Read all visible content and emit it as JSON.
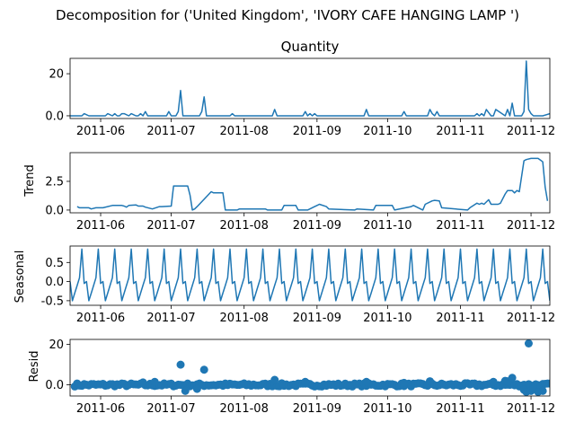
{
  "figure": {
    "suptitle": "Decomposition for ('United Kingdom', 'IVORY CAFE HANGING LAMP ')"
  },
  "colors": {
    "series": "#1f77b4",
    "axes": "#000000",
    "background": "#ffffff"
  },
  "chart_data": [
    {
      "type": "line",
      "title": "Quantity",
      "ylabel": "",
      "x_range": [
        "2011-05-19",
        "2011-12-09"
      ],
      "x_ticks": [
        "2011-06",
        "2011-07",
        "2011-08",
        "2011-09",
        "2011-10",
        "2011-11",
        "2011-12"
      ],
      "ylim": [
        -1.3,
        27.3
      ],
      "y_ticks": [
        0,
        20
      ],
      "grid": false,
      "series": [
        {
          "x": [
            "2011-05-19",
            "2011-05-21",
            "2011-05-24",
            "2011-05-25",
            "2011-05-27",
            "2011-06-03",
            "2011-06-04",
            "2011-06-06",
            "2011-06-07",
            "2011-06-08",
            "2011-06-09",
            "2011-06-10",
            "2011-06-11",
            "2011-06-13",
            "2011-06-14",
            "2011-06-16",
            "2011-06-17",
            "2011-06-18",
            "2011-06-19",
            "2011-06-20",
            "2011-06-21",
            "2011-06-29",
            "2011-06-30",
            "2011-07-01",
            "2011-07-02",
            "2011-07-03",
            "2011-07-04",
            "2011-07-05",
            "2011-07-06",
            "2011-07-13",
            "2011-07-14",
            "2011-07-15",
            "2011-07-16",
            "2011-07-19",
            "2011-07-26",
            "2011-07-27",
            "2011-07-28",
            "2011-08-13",
            "2011-08-14",
            "2011-08-15",
            "2011-08-26",
            "2011-08-27",
            "2011-08-28",
            "2011-08-29",
            "2011-08-30",
            "2011-08-31",
            "2011-09-01",
            "2011-09-02",
            "2011-09-21",
            "2011-09-22",
            "2011-09-23",
            "2011-10-07",
            "2011-10-08",
            "2011-10-09",
            "2011-10-18",
            "2011-10-19",
            "2011-10-20",
            "2011-10-21",
            "2011-10-22",
            "2011-10-23",
            "2011-11-07",
            "2011-11-08",
            "2011-11-09",
            "2011-11-10",
            "2011-11-11",
            "2011-11-12",
            "2011-11-14",
            "2011-11-15",
            "2011-11-16",
            "2011-11-20",
            "2011-11-21",
            "2011-11-22",
            "2011-11-23",
            "2011-11-24",
            "2011-11-26",
            "2011-11-27",
            "2011-11-28",
            "2011-11-29",
            "2011-11-30",
            "2011-12-01",
            "2011-12-02",
            "2011-12-03",
            "2011-12-06",
            "2011-12-09"
          ],
          "y": [
            0,
            0,
            0,
            1,
            0,
            0,
            1,
            0,
            1,
            0,
            0,
            1,
            1,
            0,
            1,
            0,
            0,
            1,
            0,
            2,
            0,
            0,
            2,
            0,
            0,
            0,
            2,
            12,
            0,
            0,
            2,
            9,
            0,
            0,
            0,
            1,
            0,
            0,
            3,
            0,
            0,
            2,
            0,
            1,
            0,
            1,
            0,
            0,
            0,
            3,
            0,
            0,
            2,
            0,
            0,
            3,
            1,
            0,
            2,
            0,
            0,
            1,
            0,
            1,
            0,
            3,
            0,
            0,
            3,
            0,
            3,
            0,
            6,
            0,
            0,
            0,
            2,
            26,
            3,
            1,
            0,
            0,
            0,
            1
          ]
        }
      ]
    },
    {
      "type": "line",
      "title": "",
      "ylabel": "Trend",
      "x_range": [
        "2011-05-19",
        "2011-12-09"
      ],
      "x_ticks": [
        "2011-06",
        "2011-07",
        "2011-08",
        "2011-09",
        "2011-10",
        "2011-11",
        "2011-12"
      ],
      "ylim": [
        -0.24,
        5.0
      ],
      "y_ticks": [
        0.0,
        2.5
      ],
      "grid": false,
      "series": [
        {
          "x": [
            "2011-05-22",
            "2011-05-23",
            "2011-05-27",
            "2011-05-28",
            "2011-05-30",
            "2011-06-02",
            "2011-06-06",
            "2011-06-10",
            "2011-06-11",
            "2011-06-12",
            "2011-06-13",
            "2011-06-16",
            "2011-06-17",
            "2011-06-19",
            "2011-06-20",
            "2011-06-23",
            "2011-06-26",
            "2011-06-27",
            "2011-07-01",
            "2011-07-02",
            "2011-07-08",
            "2011-07-09",
            "2011-07-10",
            "2011-07-11",
            "2011-07-12",
            "2011-07-18",
            "2011-07-19",
            "2011-07-23",
            "2011-07-24",
            "2011-07-29",
            "2011-07-30",
            "2011-08-10",
            "2011-08-11",
            "2011-08-17",
            "2011-08-18",
            "2011-08-23",
            "2011-08-24",
            "2011-08-28",
            "2011-08-31",
            "2011-09-01",
            "2011-09-02",
            "2011-09-05",
            "2011-09-06",
            "2011-09-17",
            "2011-09-18",
            "2011-09-25",
            "2011-09-26",
            "2011-10-03",
            "2011-10-04",
            "2011-10-11",
            "2011-10-12",
            "2011-10-13",
            "2011-10-16",
            "2011-10-17",
            "2011-10-20",
            "2011-10-21",
            "2011-10-23",
            "2011-10-24",
            "2011-11-04",
            "2011-11-05",
            "2011-11-08",
            "2011-11-09",
            "2011-11-10",
            "2011-11-11",
            "2011-11-13",
            "2011-11-14",
            "2011-11-15",
            "2011-11-17",
            "2011-11-18",
            "2011-11-20",
            "2011-11-21",
            "2011-11-23",
            "2011-11-24",
            "2011-11-25",
            "2011-11-26",
            "2011-11-28",
            "2011-11-29",
            "2011-12-01",
            "2011-12-04",
            "2011-12-06",
            "2011-12-07",
            "2011-12-08"
          ],
          "y": [
            0.3,
            0.2,
            0.2,
            0.1,
            0.2,
            0.2,
            0.4,
            0.4,
            0.35,
            0.25,
            0.4,
            0.45,
            0.35,
            0.35,
            0.25,
            0.1,
            0.3,
            0.3,
            0.35,
            2.1,
            2.1,
            1.3,
            0.0,
            0.1,
            0.3,
            1.6,
            1.5,
            1.5,
            0.0,
            0.0,
            0.1,
            0.1,
            0.0,
            0.0,
            0.4,
            0.4,
            0.0,
            0.0,
            0.3,
            0.4,
            0.5,
            0.3,
            0.1,
            0.0,
            0.1,
            0.0,
            0.4,
            0.4,
            0.0,
            0.3,
            0.4,
            0.3,
            0.0,
            0.5,
            0.8,
            0.85,
            0.8,
            0.2,
            0.0,
            0.2,
            0.6,
            0.5,
            0.6,
            0.5,
            0.9,
            0.5,
            0.5,
            0.5,
            0.6,
            1.4,
            1.7,
            1.7,
            1.5,
            1.7,
            1.6,
            4.3,
            4.4,
            4.5,
            4.5,
            4.2,
            2.0,
            0.8
          ]
        }
      ]
    },
    {
      "type": "line",
      "title": "",
      "ylabel": "Seasonal",
      "x_range": [
        "2011-05-19",
        "2011-12-09"
      ],
      "x_ticks": [
        "2011-06",
        "2011-07",
        "2011-08",
        "2011-09",
        "2011-10",
        "2011-11",
        "2011-12"
      ],
      "ylim": [
        -0.62,
        0.93
      ],
      "y_ticks": [
        0.5,
        0.0,
        -0.5
      ],
      "grid": false,
      "period": 7,
      "pattern": [
        0.0,
        -0.5,
        -0.3,
        -0.1,
        0.1,
        0.85,
        -0.05
      ],
      "series_start": "2011-05-19",
      "series_end": "2011-12-09"
    },
    {
      "type": "scatter",
      "title": "",
      "ylabel": "Resid",
      "x_range": [
        "2011-05-19",
        "2011-12-09"
      ],
      "x_ticks": [
        "2011-06",
        "2011-07",
        "2011-08",
        "2011-09",
        "2011-10",
        "2011-11",
        "2011-12"
      ],
      "ylim": [
        -5.5,
        22.5
      ],
      "y_ticks": [
        0,
        20
      ],
      "grid": false,
      "zero_line": true,
      "series": [
        {
          "x": [
            "2011-07-05",
            "2011-07-15",
            "2011-07-07",
            "2011-08-14",
            "2011-08-27",
            "2011-09-22",
            "2011-10-08",
            "2011-10-19",
            "2011-11-15",
            "2011-11-20",
            "2011-11-21",
            "2011-11-23",
            "2011-11-28",
            "2011-11-29",
            "2011-11-30",
            "2011-12-01",
            "2011-12-02",
            "2011-12-04",
            "2011-12-06",
            "2011-06-19",
            "2011-06-24",
            "2011-07-12"
          ],
          "y": [
            10,
            7.5,
            -3,
            2.5,
            1.5,
            1.5,
            1,
            1.8,
            1.5,
            2,
            1.8,
            3.5,
            -2.5,
            -3.5,
            20.5,
            -3,
            -2,
            -3.5,
            -3,
            1.2,
            1.5,
            -2
          ]
        }
      ],
      "noise_points": "daily"
    }
  ]
}
